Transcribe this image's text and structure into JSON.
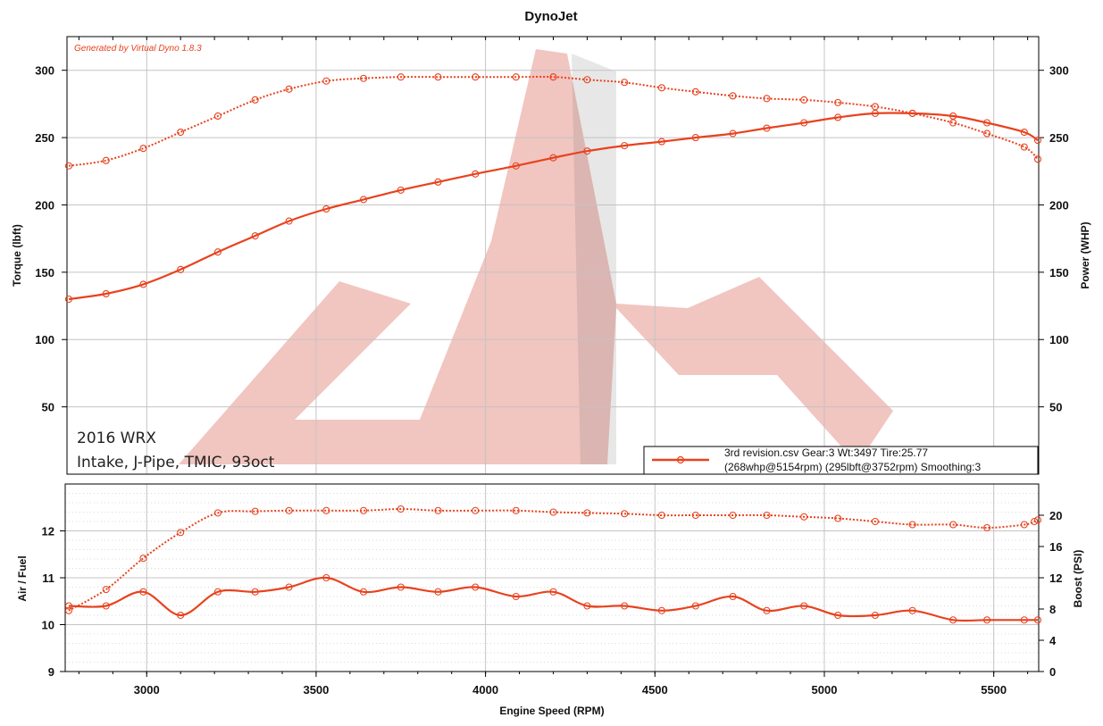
{
  "colors": {
    "series": "#e8421e",
    "grid": "#c4c4c4",
    "minor_grid": "#d9d9d9",
    "frame": "#000000",
    "watermark": "#d8584a"
  },
  "chart_data": [
    {
      "type": "line",
      "title": "DynoJet",
      "generated_by": "Generated by Virtual Dyno 1.8.3",
      "annotation_lines": [
        "2016 WRX",
        "Intake, J-Pipe, TMIC, 93oct"
      ],
      "xlabel": "",
      "ylabel": "Torque (lbft)",
      "y2label": "Power (WHP)",
      "xlim": [
        2770,
        5630
      ],
      "ylim": [
        0,
        325
      ],
      "y2lim": [
        0,
        325
      ],
      "yticks": [
        "50",
        "100",
        "150",
        "200",
        "250",
        "300"
      ],
      "y2ticks": [
        "50",
        "100",
        "150",
        "200",
        "250",
        "300"
      ],
      "grid": true,
      "legend": {
        "position": "bottom-right",
        "lines": [
          "3rd revision.csv Gear:3 Wt:3497 Tire:25.77",
          "(268whp@5154rpm) (295lbft@3752rpm)  Smoothing:3"
        ]
      },
      "series": [
        {
          "key": "torque",
          "axis": "left",
          "style": "dotted",
          "x": [
            2770,
            2880,
            2990,
            3100,
            3210,
            3320,
            3420,
            3530,
            3640,
            3750,
            3860,
            3970,
            4090,
            4200,
            4300,
            4410,
            4520,
            4620,
            4730,
            4830,
            4940,
            5040,
            5150,
            5260,
            5380,
            5480,
            5590,
            5630
          ],
          "y": [
            229,
            233,
            242,
            254,
            266,
            278,
            286,
            292,
            294,
            295,
            295,
            295,
            295,
            295,
            293,
            291,
            287,
            284,
            281,
            279,
            278,
            276,
            273,
            268,
            261,
            253,
            243,
            234
          ]
        },
        {
          "key": "power",
          "axis": "right",
          "style": "solid",
          "x": [
            2770,
            2880,
            2990,
            3100,
            3210,
            3320,
            3420,
            3530,
            3640,
            3750,
            3860,
            3970,
            4090,
            4200,
            4300,
            4410,
            4520,
            4620,
            4730,
            4830,
            4940,
            5040,
            5150,
            5260,
            5380,
            5480,
            5590,
            5630
          ],
          "y": [
            130,
            134,
            141,
            152,
            165,
            177,
            188,
            197,
            204,
            211,
            217,
            223,
            229,
            235,
            240,
            244,
            247,
            250,
            253,
            257,
            261,
            265,
            268,
            268,
            266,
            261,
            254,
            248
          ]
        }
      ]
    },
    {
      "type": "line",
      "xlabel": "Engine Speed (RPM)",
      "ylabel": "Air / Fuel",
      "y2label": "Boost (PSI)",
      "xlim": [
        2770,
        5630
      ],
      "ylim": [
        9,
        13
      ],
      "y2lim": [
        0,
        24
      ],
      "xticks": [
        "3000",
        "3500",
        "4000",
        "4500",
        "5000",
        "5500"
      ],
      "yticks": [
        "9",
        "10",
        "11",
        "12"
      ],
      "y2ticks": [
        "0",
        "4",
        "8",
        "12",
        "16",
        "20"
      ],
      "grid": true,
      "series": [
        {
          "key": "boost",
          "axis": "right",
          "style": "dotted",
          "x": [
            2770,
            2880,
            2990,
            3100,
            3210,
            3320,
            3420,
            3530,
            3640,
            3750,
            3860,
            3970,
            4090,
            4200,
            4300,
            4410,
            4520,
            4620,
            4730,
            4830,
            4940,
            5040,
            5150,
            5260,
            5380,
            5480,
            5590,
            5620,
            5630
          ],
          "y": [
            7.8,
            10.5,
            14.5,
            17.8,
            20.3,
            20.5,
            20.6,
            20.6,
            20.6,
            20.8,
            20.6,
            20.6,
            20.6,
            20.4,
            20.3,
            20.2,
            20.0,
            20.0,
            20.0,
            20.0,
            19.8,
            19.6,
            19.2,
            18.8,
            18.8,
            18.4,
            18.8,
            19.2,
            19.4
          ]
        },
        {
          "key": "afr",
          "axis": "left",
          "style": "solid",
          "x": [
            2770,
            2880,
            2990,
            3100,
            3210,
            3320,
            3420,
            3530,
            3640,
            3750,
            3860,
            3970,
            4090,
            4200,
            4300,
            4410,
            4520,
            4620,
            4730,
            4830,
            4940,
            5040,
            5150,
            5260,
            5380,
            5480,
            5590,
            5630
          ],
          "y": [
            10.4,
            10.4,
            10.7,
            10.2,
            10.7,
            10.7,
            10.8,
            11.0,
            10.7,
            10.8,
            10.7,
            10.8,
            10.6,
            10.7,
            10.4,
            10.4,
            10.3,
            10.4,
            10.6,
            10.3,
            10.4,
            10.2,
            10.2,
            10.3,
            10.1,
            10.1,
            10.1,
            10.1
          ]
        }
      ]
    }
  ]
}
